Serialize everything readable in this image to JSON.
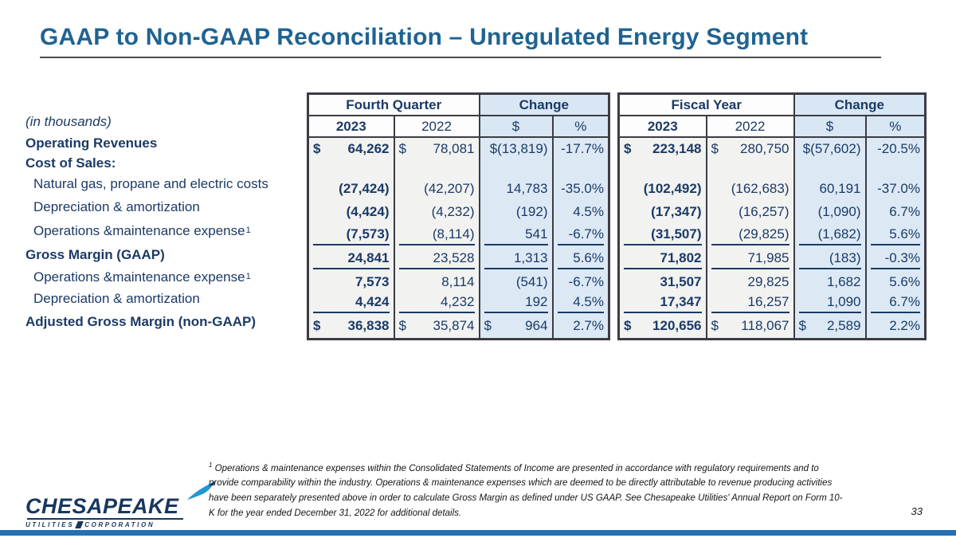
{
  "title": "GAAP to Non-GAAP Reconciliation – Unregulated Energy Segment",
  "in_thousands": "(in thousands)",
  "row_labels": [
    {
      "label": "Operating Revenues",
      "style": "bold"
    },
    {
      "label": "Cost of Sales:",
      "style": "bold"
    },
    {
      "label": "Natural gas, propane and electric costs",
      "style": "indent"
    },
    {
      "label": "Depreciation & amortization",
      "style": "indent"
    },
    {
      "label": "Operations &maintenance expense",
      "sup": "1",
      "style": "indent"
    },
    {
      "label": "Gross Margin (GAAP)",
      "style": "bold"
    },
    {
      "label": "Operations &maintenance expense",
      "sup": "1",
      "style": "indent"
    },
    {
      "label": "Depreciation & amortization",
      "style": "indent"
    },
    {
      "label": "Adjusted Gross Margin (non-GAAP)",
      "style": "bold"
    }
  ],
  "tables": [
    {
      "id": "fourth-quarter",
      "group_headers": [
        "Fourth Quarter",
        "Change"
      ],
      "col_headers": [
        "2023",
        "2022",
        "$",
        "%"
      ],
      "underline_rows": [
        4,
        5,
        7
      ],
      "rows": [
        [
          {
            "p": "$",
            "t": "64,262"
          },
          {
            "p": "$",
            "t": "78,081"
          },
          {
            "t": "$(13,819)"
          },
          {
            "t": "-17.7%"
          }
        ],
        [],
        [
          {
            "t": "(27,424)"
          },
          {
            "t": "(42,207)"
          },
          {
            "t": "14,783"
          },
          {
            "t": "-35.0%"
          }
        ],
        [
          {
            "t": "(4,424)"
          },
          {
            "t": "(4,232)"
          },
          {
            "t": "(192)"
          },
          {
            "t": "4.5%"
          }
        ],
        [
          {
            "t": "(7,573)"
          },
          {
            "t": "(8,114)"
          },
          {
            "t": "541"
          },
          {
            "t": "-6.7%"
          }
        ],
        [
          {
            "t": "24,841"
          },
          {
            "t": "23,528"
          },
          {
            "t": "1,313"
          },
          {
            "t": "5.6%"
          }
        ],
        [
          {
            "t": "7,573"
          },
          {
            "t": "8,114"
          },
          {
            "t": "(541)"
          },
          {
            "t": "-6.7%"
          }
        ],
        [
          {
            "t": "4,424"
          },
          {
            "t": "4,232"
          },
          {
            "t": "192"
          },
          {
            "t": "4.5%"
          }
        ],
        [
          {
            "p": "$",
            "t": "36,838"
          },
          {
            "p": "$",
            "t": "35,874"
          },
          {
            "p": "$",
            "t": "964"
          },
          {
            "t": "2.7%"
          }
        ]
      ]
    },
    {
      "id": "fiscal-year",
      "group_headers": [
        "Fiscal Year",
        "Change"
      ],
      "col_headers": [
        "2023",
        "2022",
        "$",
        "%"
      ],
      "underline_rows": [
        4,
        5,
        7
      ],
      "rows": [
        [
          {
            "p": "$",
            "t": "223,148"
          },
          {
            "p": "$",
            "t": "280,750"
          },
          {
            "t": "$(57,602)"
          },
          {
            "t": "-20.5%"
          }
        ],
        [],
        [
          {
            "t": "(102,492)"
          },
          {
            "t": "(162,683)"
          },
          {
            "t": "60,191"
          },
          {
            "t": "-37.0%"
          }
        ],
        [
          {
            "t": "(17,347)"
          },
          {
            "t": "(16,257)"
          },
          {
            "t": "(1,090)"
          },
          {
            "t": "6.7%"
          }
        ],
        [
          {
            "t": "(31,507)"
          },
          {
            "t": "(29,825)"
          },
          {
            "t": "(1,682)"
          },
          {
            "t": "5.6%"
          }
        ],
        [
          {
            "t": "71,802"
          },
          {
            "t": "71,985"
          },
          {
            "t": "(183)"
          },
          {
            "t": "-0.3%"
          }
        ],
        [
          {
            "t": "31,507"
          },
          {
            "t": "29,825"
          },
          {
            "t": "1,682"
          },
          {
            "t": "5.6%"
          }
        ],
        [
          {
            "t": "17,347"
          },
          {
            "t": "16,257"
          },
          {
            "t": "1,090"
          },
          {
            "t": "6.7%"
          }
        ],
        [
          {
            "p": "$",
            "t": "120,656"
          },
          {
            "p": "$",
            "t": "118,067"
          },
          {
            "p": "$",
            "t": "2,589"
          },
          {
            "t": "2.2%"
          }
        ]
      ]
    }
  ],
  "footnote": {
    "marker": "1",
    "text": " Operations & maintenance expenses within the Consolidated Statements of Income are presented in accordance with regulatory requirements and to provide comparability within the industry. Operations & maintenance expenses which are deemed to be directly attributable to revenue producing activities have been separately presented above in order to calculate Gross Margin as defined under US GAAP. See Chesapeake Utilities' Annual Report on Form 10-K for the year ended December 31, 2022 for additional details."
  },
  "logo": {
    "name": "CHESAPEAKE",
    "sub_left": "UTILITIES",
    "sub_right": "CORPORATION"
  },
  "page_number": "33",
  "colors": {
    "title_blue": "#1F6391",
    "navy_text": "#1B3A66",
    "cell_gray": "#F2F2F1",
    "cell_blue": "#DCE9F5",
    "header_white": "#FDFDFD",
    "header_blue": "#D9E7F5",
    "table_border": "#3C3C44",
    "bottom_bar_blue": "#2470B3",
    "logo_bird_blue": "#2196D3"
  }
}
